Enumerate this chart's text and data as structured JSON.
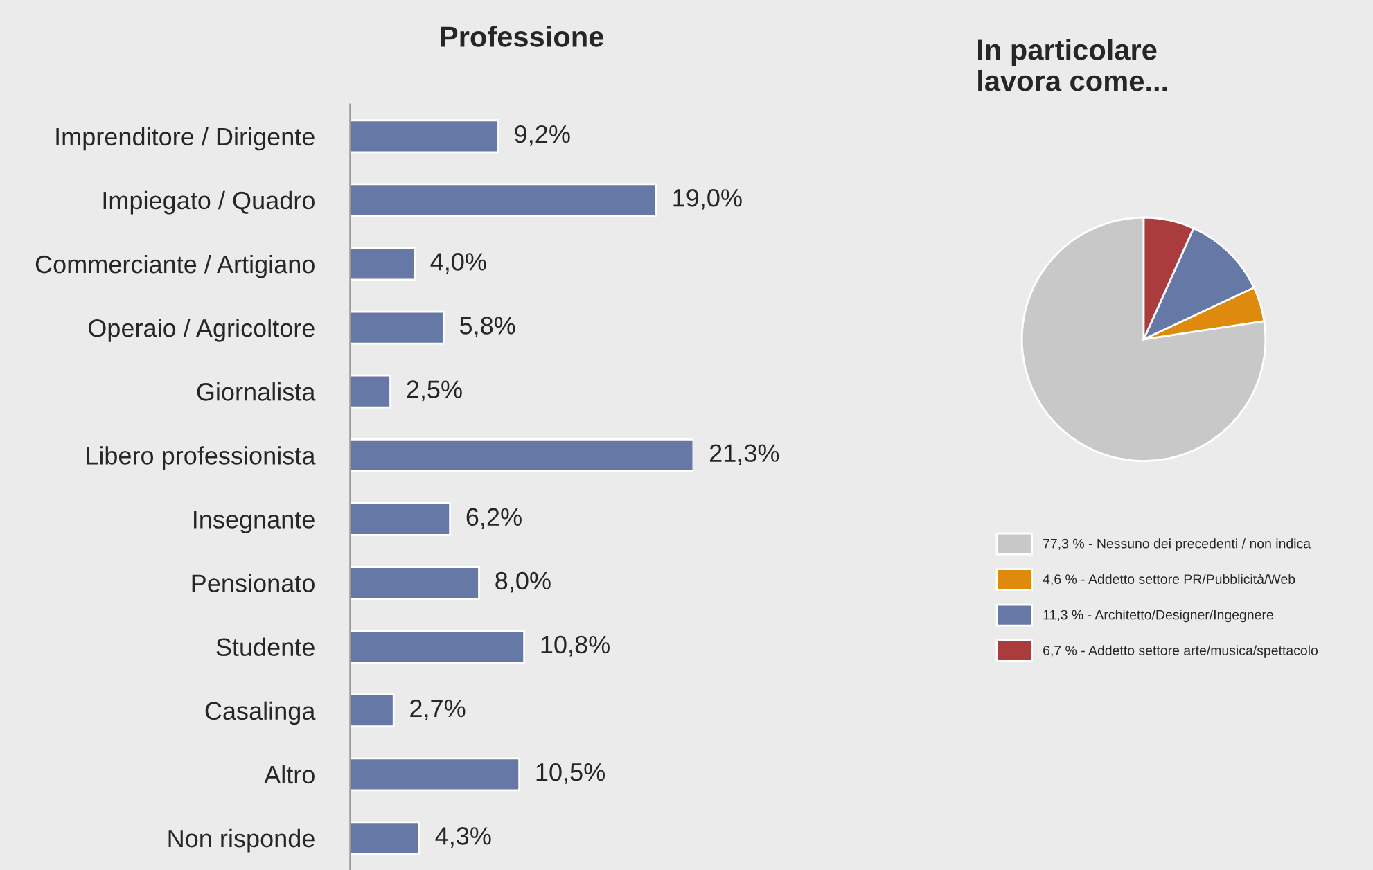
{
  "chart_data": [
    {
      "type": "bar",
      "title": "Professione",
      "orientation": "horizontal",
      "categories": [
        "Imprenditore / Dirigente",
        "Impiegato / Quadro",
        "Commerciante / Artigiano",
        "Operaio / Agricoltore",
        "Giornalista",
        "Libero professionista",
        "Insegnante",
        "Pensionato",
        "Studente",
        "Casalinga",
        "Altro",
        "Non risponde"
      ],
      "values": [
        9.2,
        19.0,
        4.0,
        5.8,
        2.5,
        21.3,
        6.2,
        8.0,
        10.8,
        2.7,
        10.5,
        4.3
      ],
      "value_labels": [
        "9,2%",
        "19,0%",
        "4,0%",
        "5,8%",
        "2,5%",
        "21,3%",
        "6,2%",
        "8,0%",
        "10,8%",
        "2,7%",
        "10,5%",
        "4,3%"
      ],
      "color": "#6678a6",
      "tick_labels": "y",
      "grid": false,
      "legend": false
    },
    {
      "type": "pie",
      "title": "In particolare\nlavora come...",
      "categories": [
        "77,3 % - Nessuno dei precedenti / non indica",
        "4,6 % - Addetto settore PR/Pubblicità/Web",
        "11,3 % - Architetto/Designer/Ingegnere",
        "6,7 % - Addetto settore arte/musica/spettacolo"
      ],
      "values": [
        77.3,
        4.6,
        11.3,
        6.7
      ],
      "colors": [
        "#c8c8c8",
        "#de8a0c",
        "#6678a6",
        "#aa3c3e"
      ],
      "legend": "bottom"
    }
  ]
}
